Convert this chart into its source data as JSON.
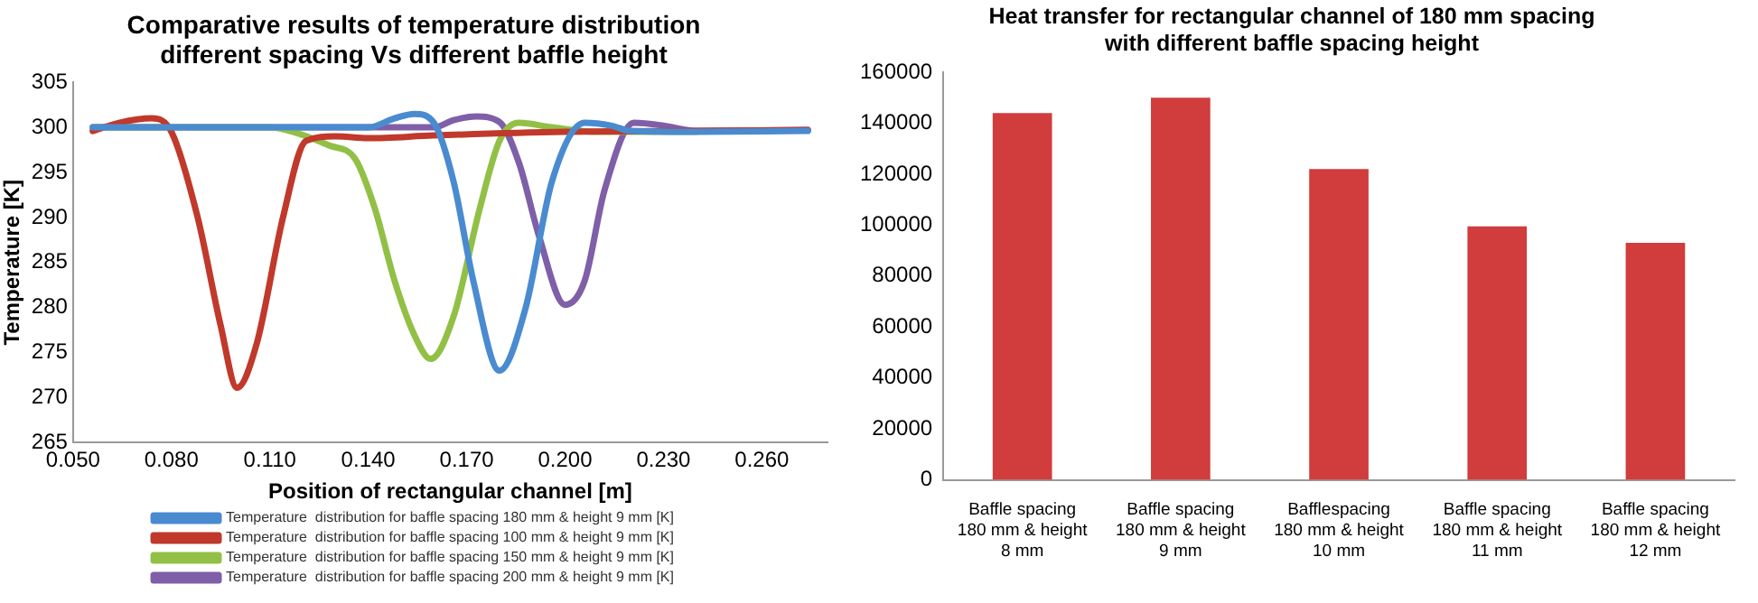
{
  "chart_data": [
    {
      "type": "line",
      "title": "Comparative results of temperature distribution different spacing Vs different baffle height",
      "xlabel": "Position of rectangular channel [m]",
      "ylabel": "Temperature [K]",
      "xlim": [
        0.05,
        0.28
      ],
      "xticks": [
        {
          "value": 0.05,
          "label": "0.050"
        },
        {
          "value": 0.08,
          "label": "0.080"
        },
        {
          "value": 0.11,
          "label": "0.110"
        },
        {
          "value": 0.14,
          "label": "0.140"
        },
        {
          "value": 0.17,
          "label": "0.170"
        },
        {
          "value": 0.2,
          "label": "0.200"
        },
        {
          "value": 0.23,
          "label": "0.230"
        },
        {
          "value": 0.26,
          "label": "0.260"
        }
      ],
      "ylim": [
        265,
        305
      ],
      "yticks": [
        265,
        270,
        275,
        280,
        285,
        290,
        295,
        300,
        305
      ],
      "grid": false,
      "legend": "bottom",
      "marker": "none",
      "line_style": "solid",
      "series": [
        {
          "name": "Temperature  distribution for baffle spacing 180 mm & height 9 mm [K]",
          "color": "#4a8bd0",
          "x": [
            0.056,
            0.1,
            0.14,
            0.148,
            0.154,
            0.16,
            0.166,
            0.172,
            0.18,
            0.188,
            0.196,
            0.206,
            0.214,
            0.22,
            0.24,
            0.274
          ],
          "values": [
            300,
            300,
            300,
            301,
            301.5,
            300.5,
            294,
            283,
            273,
            280,
            294,
            300.5,
            300.2,
            299.6,
            299.5,
            299.6
          ]
        },
        {
          "name": "Temperature  distribution for baffle spacing 100 mm & height 9 mm [K]",
          "color": "#c0392b",
          "x": [
            0.056,
            0.064,
            0.074,
            0.08,
            0.088,
            0.095,
            0.1,
            0.106,
            0.114,
            0.121,
            0.13,
            0.14,
            0.16,
            0.2,
            0.24,
            0.274
          ],
          "values": [
            299.6,
            300.5,
            301,
            299.5,
            290,
            278,
            271.1,
            276,
            290,
            298.5,
            299,
            298.8,
            299.1,
            299.5,
            299.6,
            299.7
          ]
        },
        {
          "name": "Temperature  distribution for baffle spacing 150 mm & height 9 mm [K]",
          "color": "#92c046",
          "x": [
            0.056,
            0.11,
            0.118,
            0.128,
            0.136,
            0.142,
            0.148,
            0.154,
            0.159,
            0.166,
            0.174,
            0.18,
            0.186,
            0.196,
            0.21,
            0.24
          ],
          "values": [
            300,
            300,
            299.4,
            298,
            296.5,
            291,
            283,
            277,
            274.3,
            279,
            291,
            298.5,
            300.5,
            300,
            299.5,
            299.5
          ]
        },
        {
          "name": "Temperature  distribution for baffle spacing 200 mm & height 9 mm [K]",
          "color": "#7f5fa8",
          "x": [
            0.056,
            0.14,
            0.16,
            0.166,
            0.173,
            0.18,
            0.186,
            0.192,
            0.2,
            0.206,
            0.212,
            0.221,
            0.23,
            0.24,
            0.274
          ],
          "values": [
            300,
            300,
            300,
            300.8,
            301.2,
            300.6,
            296,
            288,
            280.3,
            283,
            293,
            300.5,
            300.2,
            299.6,
            299.7
          ]
        }
      ]
    },
    {
      "type": "bar",
      "title": "Heat transfer for rectangular channel of 180 mm spacing with different baffle spacing height",
      "categories": [
        "Baffle spacing 180 mm & height 8 mm",
        "Baffle spacing 180 mm & height 9 mm",
        "Bafflespacing 180 mm & height 10 mm",
        "Baffle spacing 180 mm & height 11 mm",
        "Baffle spacing 180 mm & height 12 mm"
      ],
      "values": [
        144000,
        150000,
        122000,
        99500,
        93000
      ],
      "color": "#d13c3c",
      "ylim": [
        0,
        160000
      ],
      "yticks": [
        0,
        20000,
        40000,
        60000,
        80000,
        100000,
        120000,
        140000,
        160000
      ],
      "grid": false
    }
  ]
}
